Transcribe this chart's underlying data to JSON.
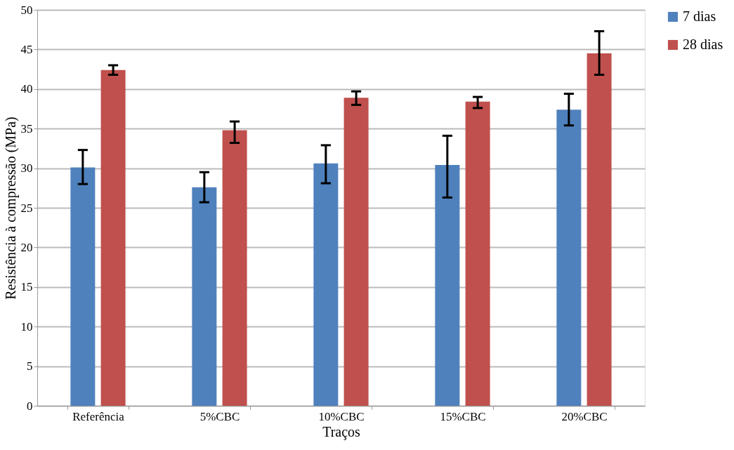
{
  "chart_data": {
    "type": "bar",
    "xlabel": "Traços",
    "ylabel": "Resistência à compressão (MPa)",
    "categories": [
      "Referência",
      "5%CBC",
      "10%CBC",
      "15%CBC",
      "20%CBC"
    ],
    "series": [
      {
        "name": "7 dias",
        "color": "#4f81bd",
        "values": [
          30.1,
          27.6,
          30.6,
          30.4,
          37.4
        ],
        "errors": [
          [
            28.0,
            32.3
          ],
          [
            25.7,
            29.5
          ],
          [
            28.1,
            32.9
          ],
          [
            26.3,
            34.1
          ],
          [
            35.4,
            39.4
          ]
        ]
      },
      {
        "name": "28 dias",
        "color": "#c0504d",
        "values": [
          42.4,
          34.8,
          38.9,
          38.4,
          44.5
        ],
        "errors": [
          [
            41.8,
            43.0
          ],
          [
            33.2,
            35.9
          ],
          [
            38.0,
            39.7
          ],
          [
            37.6,
            39.0
          ],
          [
            41.8,
            47.3
          ]
        ]
      }
    ],
    "ylim": [
      0,
      50
    ],
    "yticks": [
      0,
      5,
      10,
      15,
      20,
      25,
      30,
      35,
      40,
      45,
      50
    ],
    "grid": "y",
    "legend": "right"
  }
}
